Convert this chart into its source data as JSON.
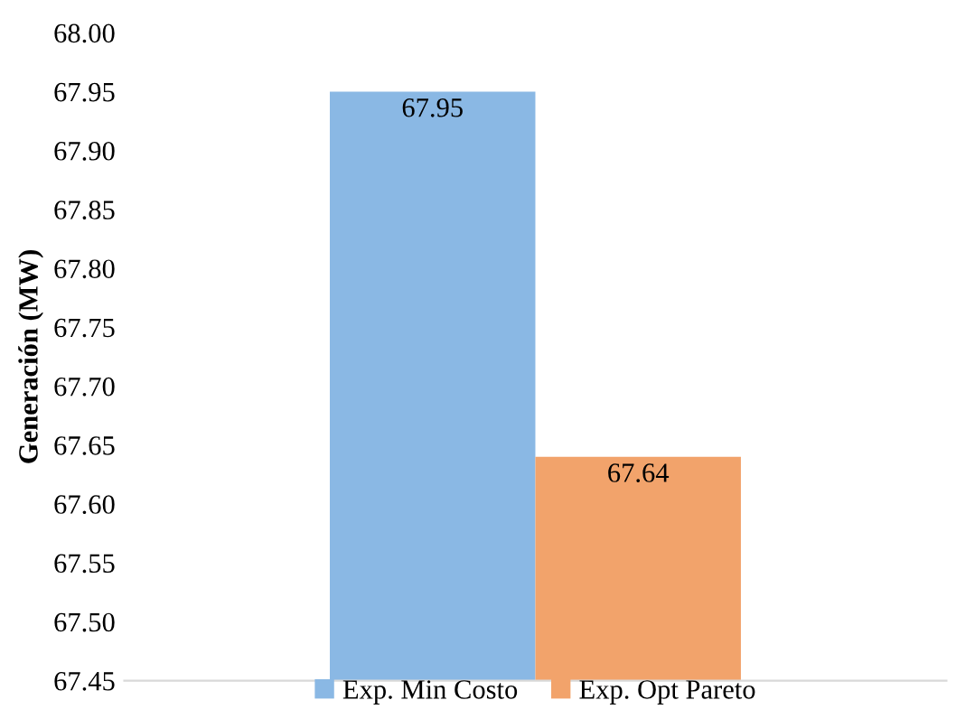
{
  "chart_data": {
    "type": "bar",
    "ylabel": "Generación (MW)",
    "categories": [
      null
    ],
    "series": [
      {
        "name": "Exp. Min Costo",
        "color": "#8ab8e4",
        "values": [
          67.95
        ]
      },
      {
        "name": "Exp. Opt Pareto",
        "color": "#f2a36b",
        "values": [
          67.64
        ]
      }
    ],
    "ylim": [
      67.45,
      68.0
    ],
    "yticks": [
      {
        "value": 67.45,
        "label": "67.45"
      },
      {
        "value": 67.5,
        "label": "67.50"
      },
      {
        "value": 67.55,
        "label": "67.55"
      },
      {
        "value": 67.6,
        "label": "67.60"
      },
      {
        "value": 67.65,
        "label": "67.65"
      },
      {
        "value": 67.7,
        "label": "67.70"
      },
      {
        "value": 67.75,
        "label": "67.75"
      },
      {
        "value": 67.8,
        "label": "67.80"
      },
      {
        "value": 67.85,
        "label": "67.85"
      },
      {
        "value": 67.9,
        "label": "67.90"
      },
      {
        "value": 67.95,
        "label": "67.95"
      },
      {
        "value": 68.0,
        "label": "68.00"
      }
    ],
    "data_labels": true,
    "legend": "bottom",
    "grid": false
  }
}
